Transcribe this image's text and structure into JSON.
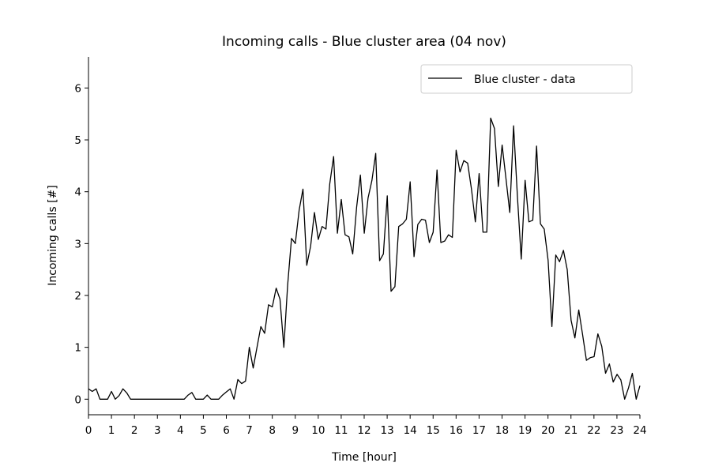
{
  "chart_data": {
    "type": "line",
    "title": "Incoming calls - Blue cluster area (04 nov)",
    "xlabel": "Time [hour]",
    "ylabel": "Incoming calls [#]",
    "xlim": [
      0,
      24
    ],
    "ylim": [
      -0.3,
      6.6
    ],
    "xticks": [
      "0",
      "1",
      "2",
      "3",
      "4",
      "5",
      "6",
      "7",
      "8",
      "9",
      "10",
      "11",
      "12",
      "13",
      "14",
      "15",
      "16",
      "17",
      "18",
      "19",
      "20",
      "21",
      "22",
      "23",
      "24"
    ],
    "yticks": [
      "0",
      "1",
      "2",
      "3",
      "4",
      "5",
      "6"
    ],
    "grid": false,
    "legend_position": "top-right",
    "series": [
      {
        "name": "Blue cluster - data",
        "color": "#000000",
        "x_step_hours": 0.1667,
        "values": [
          0.2,
          0.15,
          0.2,
          0,
          0,
          0,
          0.15,
          0,
          0.07,
          0.2,
          0.12,
          0,
          0,
          0,
          0,
          0,
          0,
          0,
          0,
          0,
          0,
          0,
          0,
          0,
          0,
          0,
          0.08,
          0.13,
          0,
          0,
          0,
          0.08,
          0,
          0,
          0,
          0.08,
          0.14,
          0.2,
          0,
          0.38,
          0.3,
          0.35,
          1.0,
          0.6,
          1.0,
          1.4,
          1.27,
          1.82,
          1.78,
          2.14,
          1.93,
          1.0,
          2.2,
          3.1,
          3.0,
          3.65,
          4.05,
          2.58,
          2.95,
          3.6,
          3.08,
          3.33,
          3.28,
          4.15,
          4.68,
          3.2,
          3.85,
          3.17,
          3.13,
          2.8,
          3.7,
          4.32,
          3.2,
          3.88,
          4.22,
          4.74,
          2.67,
          2.8,
          3.92,
          2.08,
          2.17,
          3.33,
          3.38,
          3.47,
          4.19,
          2.75,
          3.37,
          3.47,
          3.45,
          3.02,
          3.22,
          4.42,
          3.02,
          3.05,
          3.17,
          3.12,
          4.8,
          4.38,
          4.6,
          4.55,
          4.05,
          3.42,
          4.35,
          3.22,
          3.22,
          5.42,
          5.22,
          4.1,
          4.9,
          4.25,
          3.6,
          5.27,
          3.9,
          2.7,
          4.22,
          3.42,
          3.45,
          4.88,
          3.38,
          3.28,
          2.68,
          1.4,
          2.78,
          2.65,
          2.87,
          2.5,
          1.52,
          1.18,
          1.72,
          1.25,
          0.75,
          0.8,
          0.82,
          1.26,
          1.02,
          0.5,
          0.68,
          0.33,
          0.48,
          0.37,
          0.0,
          0.22,
          0.5,
          0.0,
          0.26
        ]
      }
    ]
  }
}
